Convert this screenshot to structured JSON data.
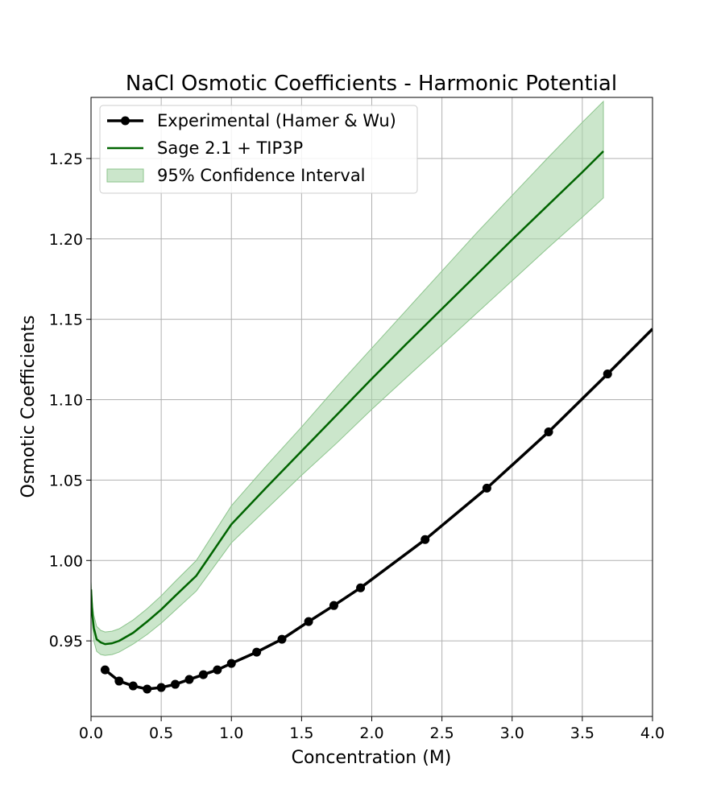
{
  "colors": {
    "experimental": "#000000",
    "model_line": "#006400",
    "ci_fill": "#a9d5a9",
    "ci_edge": "#8cc48c",
    "grid": "#b0b0b0"
  },
  "chart_data": {
    "type": "line",
    "title": "NaCl Osmotic Coefficients - Harmonic Potential",
    "xlabel": "Concentration (M)",
    "ylabel": "Osmotic Coefficients",
    "xlim": [
      0.0,
      4.0
    ],
    "ylim": [
      0.903,
      1.288
    ],
    "xticks": [
      0.0,
      0.5,
      1.0,
      1.5,
      2.0,
      2.5,
      3.0,
      3.5,
      4.0
    ],
    "xtick_labels": [
      "0.0",
      "0.5",
      "1.0",
      "1.5",
      "2.0",
      "2.5",
      "3.0",
      "3.5",
      "4.0"
    ],
    "yticks": [
      0.95,
      1.0,
      1.05,
      1.1,
      1.15,
      1.2,
      1.25
    ],
    "ytick_labels": [
      "0.95",
      "1.00",
      "1.05",
      "1.10",
      "1.15",
      "1.20",
      "1.25"
    ],
    "grid": true,
    "legend_position": "top-left",
    "series": [
      {
        "name": "Experimental (Hamer & Wu)",
        "kind": "line-markers",
        "points": [
          [
            0.1,
            0.932
          ],
          [
            0.2,
            0.925
          ],
          [
            0.3,
            0.922
          ],
          [
            0.4,
            0.92
          ],
          [
            0.5,
            0.921
          ],
          [
            0.6,
            0.923
          ],
          [
            0.7,
            0.926
          ],
          [
            0.8,
            0.929
          ],
          [
            0.9,
            0.932
          ],
          [
            1.0,
            0.936
          ],
          [
            1.18,
            0.943
          ],
          [
            1.36,
            0.951
          ],
          [
            1.55,
            0.962
          ],
          [
            1.73,
            0.972
          ],
          [
            1.92,
            0.983
          ],
          [
            2.38,
            1.013
          ],
          [
            2.82,
            1.045
          ],
          [
            3.26,
            1.08
          ],
          [
            3.68,
            1.116
          ]
        ],
        "line_extension": [
          [
            3.68,
            1.116
          ],
          [
            4.0,
            1.144
          ]
        ]
      },
      {
        "name": "Sage 2.1 + TIP3P",
        "kind": "line",
        "points": [
          [
            0.0,
            0.982
          ],
          [
            0.01,
            0.966
          ],
          [
            0.02,
            0.958
          ],
          [
            0.04,
            0.951
          ],
          [
            0.07,
            0.949
          ],
          [
            0.1,
            0.948
          ],
          [
            0.15,
            0.9485
          ],
          [
            0.2,
            0.95
          ],
          [
            0.3,
            0.955
          ],
          [
            0.4,
            0.962
          ],
          [
            0.5,
            0.9695
          ],
          [
            0.6,
            0.978
          ],
          [
            0.75,
            0.9905
          ],
          [
            1.0,
            1.0225
          ],
          [
            1.25,
            1.0455
          ],
          [
            1.5,
            1.068
          ],
          [
            1.75,
            1.0905
          ],
          [
            2.0,
            1.113
          ],
          [
            2.25,
            1.135
          ],
          [
            2.5,
            1.1565
          ],
          [
            2.75,
            1.178
          ],
          [
            3.0,
            1.1995
          ],
          [
            3.25,
            1.2205
          ],
          [
            3.5,
            1.2415
          ],
          [
            3.65,
            1.2545
          ]
        ]
      },
      {
        "name": "95% Confidence Interval",
        "kind": "band",
        "x": [
          0.0,
          0.01,
          0.02,
          0.04,
          0.07,
          0.1,
          0.15,
          0.2,
          0.3,
          0.4,
          0.5,
          0.6,
          0.75,
          1.0,
          1.25,
          1.5,
          1.75,
          2.0,
          2.25,
          2.5,
          2.75,
          3.0,
          3.25,
          3.5,
          3.65
        ],
        "lower": [
          0.978,
          0.96,
          0.95,
          0.9435,
          0.9415,
          0.941,
          0.9415,
          0.943,
          0.948,
          0.954,
          0.961,
          0.969,
          0.981,
          1.011,
          1.032,
          1.053,
          1.073,
          1.094,
          1.114,
          1.134,
          1.154,
          1.174,
          1.194,
          1.2135,
          1.2255
        ],
        "upper": [
          0.987,
          0.972,
          0.966,
          0.959,
          0.9565,
          0.9555,
          0.956,
          0.9575,
          0.963,
          0.97,
          0.978,
          0.987,
          1.0,
          1.034,
          1.059,
          1.083,
          1.108,
          1.132,
          1.156,
          1.18,
          1.204,
          1.227,
          1.25,
          1.2725,
          1.2855
        ]
      }
    ]
  }
}
